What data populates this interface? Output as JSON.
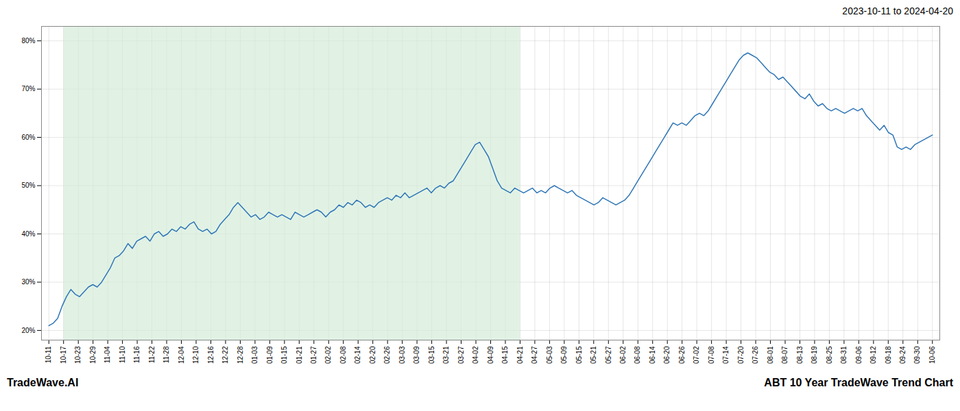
{
  "chart_data": {
    "type": "line",
    "title": "2023-10-11 to 2024-04-20",
    "annotations": [
      "TradeWave.AI",
      "ABT 10 Year TradeWave Trend Chart"
    ],
    "color": "#2e75b6",
    "grid": true,
    "shaded_span": {
      "from": 1,
      "to": 32,
      "color": "#d4edda"
    },
    "xlim": [
      -0.5,
      60.5
    ],
    "xticks": [
      {
        "value": 0,
        "label": "10-11"
      },
      {
        "value": 1,
        "label": "10-17"
      },
      {
        "value": 2,
        "label": "10-23"
      },
      {
        "value": 3,
        "label": "10-29"
      },
      {
        "value": 4,
        "label": "11-04"
      },
      {
        "value": 5,
        "label": "11-10"
      },
      {
        "value": 6,
        "label": "11-16"
      },
      {
        "value": 7,
        "label": "11-22"
      },
      {
        "value": 8,
        "label": "11-28"
      },
      {
        "value": 9,
        "label": "12-04"
      },
      {
        "value": 10,
        "label": "12-10"
      },
      {
        "value": 11,
        "label": "12-16"
      },
      {
        "value": 12,
        "label": "12-22"
      },
      {
        "value": 13,
        "label": "12-28"
      },
      {
        "value": 14,
        "label": "01-03"
      },
      {
        "value": 15,
        "label": "01-09"
      },
      {
        "value": 16,
        "label": "01-15"
      },
      {
        "value": 17,
        "label": "01-21"
      },
      {
        "value": 18,
        "label": "01-27"
      },
      {
        "value": 19,
        "label": "02-02"
      },
      {
        "value": 20,
        "label": "02-08"
      },
      {
        "value": 21,
        "label": "02-14"
      },
      {
        "value": 22,
        "label": "02-20"
      },
      {
        "value": 23,
        "label": "02-26"
      },
      {
        "value": 24,
        "label": "03-03"
      },
      {
        "value": 25,
        "label": "03-09"
      },
      {
        "value": 26,
        "label": "03-15"
      },
      {
        "value": 27,
        "label": "03-21"
      },
      {
        "value": 28,
        "label": "03-27"
      },
      {
        "value": 29,
        "label": "04-02"
      },
      {
        "value": 30,
        "label": "04-09"
      },
      {
        "value": 31,
        "label": "04-15"
      },
      {
        "value": 32,
        "label": "04-21"
      },
      {
        "value": 33,
        "label": "04-27"
      },
      {
        "value": 34,
        "label": "05-03"
      },
      {
        "value": 35,
        "label": "05-09"
      },
      {
        "value": 36,
        "label": "05-15"
      },
      {
        "value": 37,
        "label": "05-21"
      },
      {
        "value": 38,
        "label": "05-27"
      },
      {
        "value": 39,
        "label": "06-02"
      },
      {
        "value": 40,
        "label": "06-08"
      },
      {
        "value": 41,
        "label": "06-14"
      },
      {
        "value": 42,
        "label": "06-20"
      },
      {
        "value": 43,
        "label": "06-26"
      },
      {
        "value": 44,
        "label": "07-02"
      },
      {
        "value": 45,
        "label": "07-08"
      },
      {
        "value": 46,
        "label": "07-14"
      },
      {
        "value": 47,
        "label": "07-20"
      },
      {
        "value": 48,
        "label": "07-26"
      },
      {
        "value": 49,
        "label": "08-01"
      },
      {
        "value": 50,
        "label": "08-07"
      },
      {
        "value": 51,
        "label": "08-13"
      },
      {
        "value": 52,
        "label": "08-19"
      },
      {
        "value": 53,
        "label": "08-25"
      },
      {
        "value": 54,
        "label": "08-31"
      },
      {
        "value": 55,
        "label": "09-06"
      },
      {
        "value": 56,
        "label": "09-12"
      },
      {
        "value": 57,
        "label": "09-18"
      },
      {
        "value": 58,
        "label": "09-24"
      },
      {
        "value": 59,
        "label": "09-30"
      },
      {
        "value": 60,
        "label": "10-06"
      }
    ],
    "ylim": [
      18,
      83
    ],
    "yticks": [
      {
        "value": 20,
        "label": "20%"
      },
      {
        "value": 30,
        "label": "30%"
      },
      {
        "value": 40,
        "label": "40%"
      },
      {
        "value": 50,
        "label": "50%"
      },
      {
        "value": 60,
        "label": "60%"
      },
      {
        "value": 70,
        "label": "70%"
      },
      {
        "value": 80,
        "label": "80%"
      }
    ],
    "x": [
      0,
      0.2985,
      0.597,
      0.8955,
      1.194,
      1.4925,
      1.791,
      2.0896,
      2.3881,
      2.6866,
      2.9851,
      3.2836,
      3.5821,
      3.8806,
      4.1791,
      4.4776,
      4.7761,
      5.0746,
      5.3731,
      5.6716,
      5.9701,
      6.2687,
      6.5672,
      6.8657,
      7.1642,
      7.4627,
      7.7612,
      8.0597,
      8.3582,
      8.6567,
      8.9552,
      9.2537,
      9.5522,
      9.8507,
      10.1493,
      10.4478,
      10.7463,
      11.0448,
      11.3433,
      11.6418,
      11.9403,
      12.2388,
      12.5373,
      12.8358,
      13.1343,
      13.4328,
      13.7313,
      14.0299,
      14.3284,
      14.6269,
      14.9254,
      15.2239,
      15.5224,
      15.8209,
      16.1194,
      16.4179,
      16.7164,
      17.0149,
      17.3134,
      17.6119,
      17.9104,
      18.209,
      18.5075,
      18.806,
      19.1045,
      19.403,
      19.7015,
      20,
      20.2985,
      20.597,
      20.8955,
      21.194,
      21.4925,
      21.791,
      22.0896,
      22.3881,
      22.6866,
      22.9851,
      23.2836,
      23.5821,
      23.8806,
      24.1791,
      24.4776,
      24.7761,
      25.0746,
      25.3731,
      25.6716,
      25.9701,
      26.2687,
      26.5672,
      26.8657,
      27.1642,
      27.4627,
      27.7612,
      28.0597,
      28.3582,
      28.6567,
      28.9552,
      29.2537,
      29.5522,
      29.8507,
      30.1493,
      30.4478,
      30.7463,
      31.0448,
      31.3433,
      31.6418,
      31.9403,
      32.2388,
      32.5373,
      32.8358,
      33.1343,
      33.4328,
      33.7313,
      34.0299,
      34.3284,
      34.6269,
      34.9254,
      35.2239,
      35.5224,
      35.8209,
      36.1194,
      36.4179,
      36.7164,
      37.0149,
      37.3134,
      37.6119,
      37.9104,
      38.209,
      38.5075,
      38.806,
      39.1045,
      39.403,
      39.7015,
      40,
      40.2985,
      40.597,
      40.8955,
      41.194,
      41.4925,
      41.791,
      42.0896,
      42.3881,
      42.6866,
      42.9851,
      43.2836,
      43.5821,
      43.8806,
      44.1791,
      44.4776,
      44.7761,
      45.0746,
      45.3731,
      45.6716,
      45.9701,
      46.2687,
      46.5672,
      46.8657,
      47.1642,
      47.4627,
      47.7612,
      48.0597,
      48.3582,
      48.6567,
      48.9552,
      49.2537,
      49.5522,
      49.8507,
      50.1493,
      50.4478,
      50.7463,
      51.0448,
      51.3433,
      51.6418,
      51.9403,
      52.2388,
      52.5373,
      52.8358,
      53.1343,
      53.4328,
      53.7313,
      54.0299,
      54.3284,
      54.6269,
      54.9254,
      55.2239,
      55.5224,
      55.8209,
      56.1194,
      56.4179,
      56.7164,
      57.0149,
      57.3134,
      57.6119,
      57.9104,
      58.209,
      58.5075,
      58.806,
      59.1045,
      59.403,
      59.7015,
      60
    ],
    "values": [
      21.0,
      21.5,
      22.5,
      25.0,
      27.0,
      28.5,
      27.5,
      27.0,
      28.0,
      29.0,
      29.5,
      29.0,
      30.0,
      31.5,
      33.0,
      35.0,
      35.5,
      36.5,
      38.0,
      37.0,
      38.5,
      39.0,
      39.5,
      38.5,
      40.0,
      40.5,
      39.5,
      40.0,
      41.0,
      40.5,
      41.5,
      41.0,
      42.0,
      42.5,
      41.0,
      40.5,
      41.0,
      40.0,
      40.5,
      42.0,
      43.0,
      44.0,
      45.5,
      46.5,
      45.5,
      44.5,
      43.5,
      44.0,
      43.0,
      43.5,
      44.5,
      44.0,
      43.5,
      44.0,
      43.5,
      43.0,
      44.5,
      44.0,
      43.5,
      44.0,
      44.5,
      45.0,
      44.5,
      43.5,
      44.5,
      45.0,
      46.0,
      45.5,
      46.5,
      46.0,
      47.0,
      46.5,
      45.5,
      46.0,
      45.5,
      46.5,
      47.0,
      47.5,
      47.0,
      48.0,
      47.5,
      48.5,
      47.5,
      48.0,
      48.5,
      49.0,
      49.5,
      48.5,
      49.5,
      50.0,
      49.5,
      50.5,
      51.0,
      52.5,
      54.0,
      55.5,
      57.0,
      58.5,
      59.0,
      57.5,
      56.0,
      53.5,
      51.0,
      49.5,
      49.0,
      48.5,
      49.5,
      49.0,
      48.5,
      49.0,
      49.5,
      48.5,
      49.0,
      48.5,
      49.5,
      50.0,
      49.5,
      49.0,
      48.5,
      49.0,
      48.0,
      47.5,
      47.0,
      46.5,
      46.0,
      46.5,
      47.5,
      47.0,
      46.5,
      46.0,
      46.5,
      47.0,
      48.0,
      49.5,
      51.0,
      52.5,
      54.0,
      55.5,
      57.0,
      58.5,
      60.0,
      61.5,
      63.0,
      62.5,
      63.0,
      62.5,
      63.5,
      64.5,
      65.0,
      64.5,
      65.5,
      67.0,
      68.5,
      70.0,
      71.5,
      73.0,
      74.5,
      76.0,
      77.0,
      77.5,
      77.0,
      76.5,
      75.5,
      74.5,
      73.5,
      73.0,
      72.0,
      72.5,
      71.5,
      70.5,
      69.5,
      68.5,
      68.0,
      69.0,
      67.5,
      66.5,
      67.0,
      66.0,
      65.5,
      66.0,
      65.5,
      65.0,
      65.5,
      66.0,
      65.5,
      66.0,
      64.5,
      63.5,
      62.5,
      61.5,
      62.5,
      61.0,
      60.5,
      58.0,
      57.5,
      58.0,
      57.5,
      58.5,
      59.0,
      59.5,
      60.0,
      60.5
    ]
  }
}
